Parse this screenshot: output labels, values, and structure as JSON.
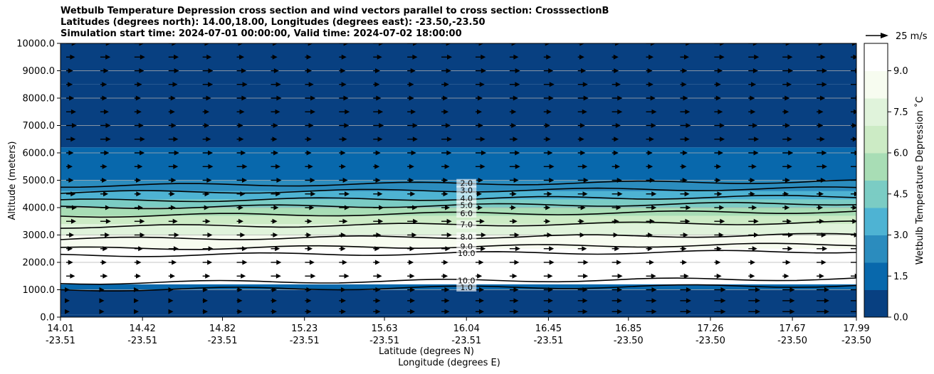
{
  "chart_data": {
    "type": "contour",
    "title_lines": [
      "Wetbulb Temperature Depression cross section and wind vectors parallel to cross section: CrosssectionB",
      "Latitudes (degrees north): 14.00,18.00, Longitudes (degrees east): -23.50,-23.50",
      "Simulation start time: 2024-07-01 00:00:00, Valid time: 2024-07-02 18:00:00"
    ],
    "xlabel_lat": "Latitude (degrees N)",
    "xlabel_lon": "Longitude (degrees E)",
    "ylabel": "Altitude (meters)",
    "xlim": [
      14.01,
      17.99
    ],
    "ylim": [
      0,
      10000
    ],
    "x_ticks": [
      {
        "lat": "14.01",
        "lon": "-23.51",
        "value": 14.01
      },
      {
        "lat": "14.42",
        "lon": "-23.51",
        "value": 14.42
      },
      {
        "lat": "14.82",
        "lon": "-23.51",
        "value": 14.82
      },
      {
        "lat": "15.23",
        "lon": "-23.51",
        "value": 15.23
      },
      {
        "lat": "15.63",
        "lon": "-23.51",
        "value": 15.63
      },
      {
        "lat": "16.04",
        "lon": "-23.51",
        "value": 16.04
      },
      {
        "lat": "16.45",
        "lon": "-23.51",
        "value": 16.45
      },
      {
        "lat": "16.85",
        "lon": "-23.50",
        "value": 16.85
      },
      {
        "lat": "17.26",
        "lon": "-23.50",
        "value": 17.26
      },
      {
        "lat": "17.67",
        "lon": "-23.50",
        "value": 17.67
      },
      {
        "lat": "17.99",
        "lon": "-23.50",
        "value": 17.99
      }
    ],
    "y_ticks": [
      {
        "label": "0.0",
        "value": 0
      },
      {
        "label": "1000.0",
        "value": 1000
      },
      {
        "label": "2000.0",
        "value": 2000
      },
      {
        "label": "3000.0",
        "value": 3000
      },
      {
        "label": "4000.0",
        "value": 4000
      },
      {
        "label": "5000.0",
        "value": 5000
      },
      {
        "label": "6000.0",
        "value": 6000
      },
      {
        "label": "7000.0",
        "value": 7000
      },
      {
        "label": "8000.0",
        "value": 8000
      },
      {
        "label": "9000.0",
        "value": 9000
      },
      {
        "label": "10000.0",
        "value": 10000
      }
    ],
    "grid": "horizontal",
    "colorbar": {
      "label": "Wetbulb Temperature Depression ˚C",
      "range": [
        0,
        10
      ],
      "ticks": [
        {
          "label": "0.0",
          "value": 0
        },
        {
          "label": "1.5",
          "value": 1.5
        },
        {
          "label": "3.0",
          "value": 3.0
        },
        {
          "label": "4.5",
          "value": 4.5
        },
        {
          "label": "6.0",
          "value": 6.0
        },
        {
          "label": "7.5",
          "value": 7.5
        },
        {
          "label": "9.0",
          "value": 9.0
        }
      ],
      "colors": [
        "#084081",
        "#0868ac",
        "#2b8cbe",
        "#4eb3d3",
        "#7bccc4",
        "#a8ddb5",
        "#ccebc5",
        "#e0f3db",
        "#f7fcf0",
        "#ffffff"
      ]
    },
    "quiver_key": {
      "label": "25 m/s",
      "speed": 25
    },
    "layers": [
      {
        "z0": 0,
        "z1": 100,
        "value": 0.6
      },
      {
        "z0": 100,
        "z1": 1000,
        "value": 0.4
      },
      {
        "z0": 1000,
        "z1": 1200,
        "value": 1.5
      },
      {
        "z0": 1200,
        "z1": 1600,
        "value": 10.5
      },
      {
        "z0": 1600,
        "z1": 2000,
        "value": 10.2
      },
      {
        "z0": 2000,
        "z1": 2500,
        "value": 9.6
      },
      {
        "z0": 2500,
        "z1": 3000,
        "value": 8.6
      },
      {
        "z0": 3000,
        "z1": 3400,
        "value": 7.5
      },
      {
        "z0": 3400,
        "z1": 3700,
        "value": 6.4
      },
      {
        "z0": 3700,
        "z1": 4000,
        "value": 5.2
      },
      {
        "z0": 4000,
        "z1": 4300,
        "value": 4.0
      },
      {
        "z0": 4300,
        "z1": 4600,
        "value": 3.0
      },
      {
        "z0": 4600,
        "z1": 5000,
        "value": 2.0
      },
      {
        "z0": 5000,
        "z1": 6200,
        "value": 1.2
      },
      {
        "z0": 6200,
        "z1": 8500,
        "value": 0.8
      },
      {
        "z0": 8500,
        "z1": 10000,
        "value": 0.5
      }
    ],
    "contours": [
      {
        "label": "1.0",
        "x": 16.04,
        "z": 1000
      },
      {
        "label": "2.0",
        "x": 16.04,
        "z": 4800
      },
      {
        "label": "3.0",
        "x": 16.04,
        "z": 4550
      },
      {
        "label": "4.0",
        "x": 16.04,
        "z": 4250
      },
      {
        "label": "5.0",
        "x": 16.04,
        "z": 4000
      },
      {
        "label": "6.0",
        "x": 16.04,
        "z": 3700
      },
      {
        "label": "7.0",
        "x": 16.04,
        "z": 3300
      },
      {
        "label": "8.0",
        "x": 16.04,
        "z": 2850
      },
      {
        "label": "9.0",
        "x": 16.04,
        "z": 2500
      },
      {
        "label": "10.0",
        "x": 16.04,
        "z": 2250
      },
      {
        "label": "10.0",
        "x": 16.04,
        "z": 1250
      }
    ],
    "wind": {
      "u_typical": 12,
      "rows_z": [
        200,
        600,
        1000,
        1500,
        2000,
        2500,
        3000,
        3500,
        4000,
        4500,
        5000,
        5500,
        6000,
        6500,
        7000,
        7500,
        8000,
        8500,
        9000,
        9500,
        10000
      ]
    }
  }
}
